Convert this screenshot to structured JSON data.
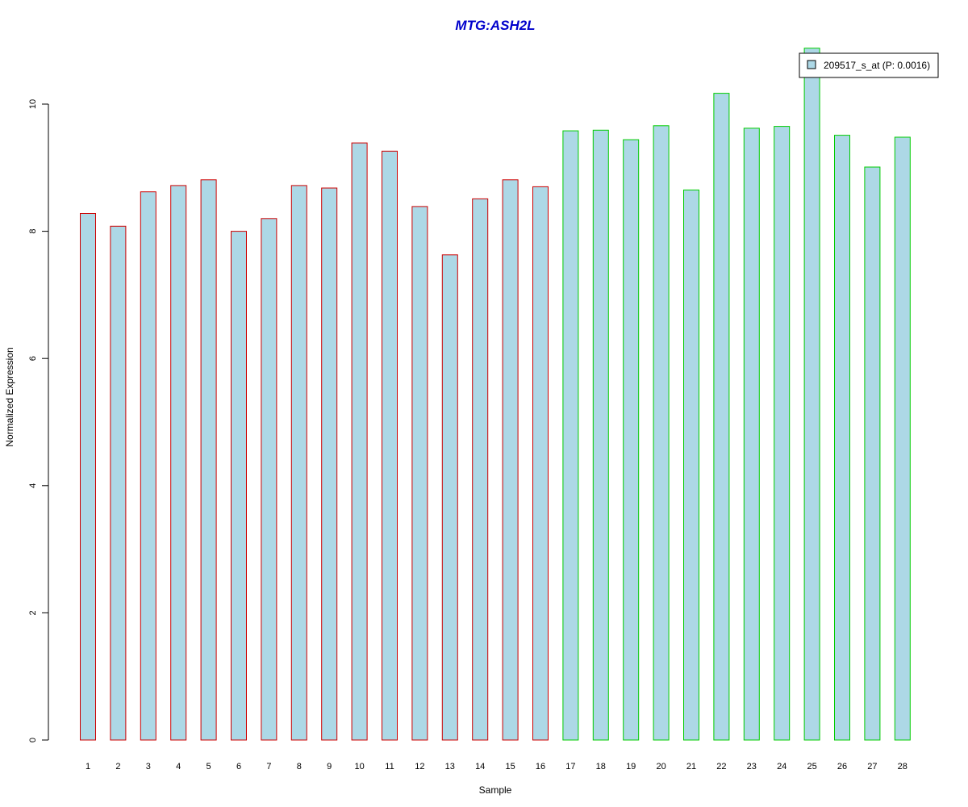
{
  "chart_data": {
    "type": "bar",
    "title": "MTG:ASH2L",
    "xlabel": "Sample",
    "ylabel": "Normalized Expression",
    "categories": [
      "1",
      "2",
      "3",
      "4",
      "5",
      "6",
      "7",
      "8",
      "9",
      "10",
      "11",
      "12",
      "13",
      "14",
      "15",
      "16",
      "17",
      "18",
      "19",
      "20",
      "21",
      "22",
      "23",
      "24",
      "25",
      "26",
      "27",
      "28"
    ],
    "series": [
      {
        "name": "209517_s_at (P: 0.0016)",
        "values": [
          8.28,
          8.08,
          8.62,
          8.72,
          8.81,
          8.0,
          8.2,
          8.72,
          8.68,
          9.39,
          9.26,
          8.39,
          7.63,
          8.51,
          8.81,
          8.7,
          9.58,
          9.59,
          9.44,
          9.66,
          8.65,
          10.17,
          9.62,
          9.65,
          10.88,
          9.51,
          9.01,
          9.48
        ]
      }
    ],
    "group_border_colors": [
      "#cc0000",
      "#cc0000",
      "#cc0000",
      "#cc0000",
      "#cc0000",
      "#cc0000",
      "#cc0000",
      "#cc0000",
      "#cc0000",
      "#cc0000",
      "#cc0000",
      "#cc0000",
      "#cc0000",
      "#cc0000",
      "#cc0000",
      "#cc0000",
      "#00cc00",
      "#00cc00",
      "#00cc00",
      "#00cc00",
      "#00cc00",
      "#00cc00",
      "#00cc00",
      "#00cc00",
      "#00cc00",
      "#00cc00",
      "#00cc00",
      "#00cc00"
    ],
    "bar_fill": "#add8e6",
    "yticks": [
      0,
      2,
      4,
      6,
      8,
      10
    ],
    "ylim": [
      0,
      10.88
    ],
    "grid": false,
    "legend_position": "top-right"
  }
}
